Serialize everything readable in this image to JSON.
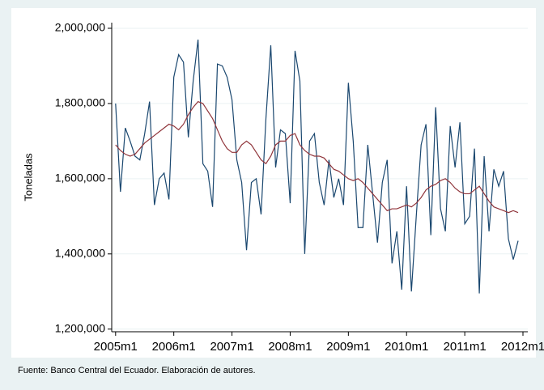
{
  "chart_data": {
    "type": "line",
    "ylabel": "Toneladas",
    "note": "Fuente: Banco Central del Ecuador. Elaboración de autores.",
    "x": [
      540,
      541,
      542,
      543,
      544,
      545,
      546,
      547,
      548,
      549,
      550,
      551,
      552,
      553,
      554,
      555,
      556,
      557,
      558,
      559,
      560,
      561,
      562,
      563,
      564,
      565,
      566,
      567,
      568,
      569,
      570,
      571,
      572,
      573,
      574,
      575,
      576,
      577,
      578,
      579,
      580,
      581,
      582,
      583,
      584,
      585,
      586,
      587,
      588,
      589,
      590,
      591,
      592,
      593,
      594,
      595,
      596,
      597,
      598,
      599,
      600,
      601,
      602,
      603,
      604,
      605,
      606,
      607,
      608,
      609,
      610,
      611,
      612,
      613,
      614,
      615,
      616,
      617,
      618,
      619,
      620,
      621,
      622,
      623
    ],
    "series": [
      {
        "color": "#1a476f",
        "values": [
          1800000,
          1565000,
          1735000,
          1700000,
          1660000,
          1650000,
          1720000,
          1805000,
          1530000,
          1600000,
          1615000,
          1545000,
          1870000,
          1930000,
          1910000,
          1710000,
          1860000,
          1970000,
          1640000,
          1620000,
          1525000,
          1905000,
          1900000,
          1870000,
          1810000,
          1650000,
          1590000,
          1410000,
          1590000,
          1600000,
          1505000,
          1760000,
          1955000,
          1630000,
          1730000,
          1720000,
          1535000,
          1940000,
          1860000,
          1400000,
          1700000,
          1720000,
          1590000,
          1530000,
          1650000,
          1550000,
          1600000,
          1530000,
          1855000,
          1700000,
          1470000,
          1470000,
          1690000,
          1560000,
          1430000,
          1590000,
          1650000,
          1375000,
          1460000,
          1305000,
          1580000,
          1300000,
          1500000,
          1690000,
          1745000,
          1450000,
          1790000,
          1520000,
          1460000,
          1740000,
          1630000,
          1750000,
          1480000,
          1500000,
          1680000,
          1295000,
          1660000,
          1460000,
          1625000,
          1580000,
          1620000,
          1440000,
          1385000,
          1435000
        ]
      },
      {
        "color": "#90353b",
        "values": [
          1690000,
          1675000,
          1665000,
          1660000,
          1665000,
          1680000,
          1695000,
          1705000,
          1715000,
          1725000,
          1735000,
          1745000,
          1740000,
          1730000,
          1745000,
          1770000,
          1790000,
          1805000,
          1800000,
          1780000,
          1760000,
          1730000,
          1700000,
          1680000,
          1670000,
          1670000,
          1690000,
          1700000,
          1690000,
          1670000,
          1650000,
          1640000,
          1660000,
          1690000,
          1700000,
          1700000,
          1715000,
          1720000,
          1690000,
          1675000,
          1665000,
          1660000,
          1660000,
          1655000,
          1640000,
          1625000,
          1620000,
          1610000,
          1600000,
          1595000,
          1600000,
          1590000,
          1575000,
          1560000,
          1545000,
          1530000,
          1515000,
          1520000,
          1520000,
          1525000,
          1530000,
          1525000,
          1535000,
          1550000,
          1570000,
          1580000,
          1585000,
          1595000,
          1600000,
          1590000,
          1575000,
          1565000,
          1560000,
          1560000,
          1570000,
          1580000,
          1560000,
          1540000,
          1525000,
          1520000,
          1515000,
          1510000,
          1515000,
          1510000
        ]
      }
    ],
    "xlim": [
      539.2,
      625
    ],
    "xticks": [
      {
        "value": 540,
        "label": "2005m1"
      },
      {
        "value": 552,
        "label": "2006m1"
      },
      {
        "value": 564,
        "label": "2007m1"
      },
      {
        "value": 576,
        "label": "2008m1"
      },
      {
        "value": 588,
        "label": "2009m1"
      },
      {
        "value": 600,
        "label": "2010m1"
      },
      {
        "value": 612,
        "label": "2011m1"
      },
      {
        "value": 624,
        "label": "2012m1"
      }
    ],
    "ylim": [
      1193000,
      2015000
    ],
    "yticks": [
      {
        "value": 1200000,
        "label": "1,200,000"
      },
      {
        "value": 1400000,
        "label": "1,400,000"
      },
      {
        "value": 1600000,
        "label": "1,600,000"
      },
      {
        "value": 1800000,
        "label": "1,800,000"
      },
      {
        "value": 2000000,
        "label": "2,000,000"
      }
    ],
    "grid": true
  }
}
